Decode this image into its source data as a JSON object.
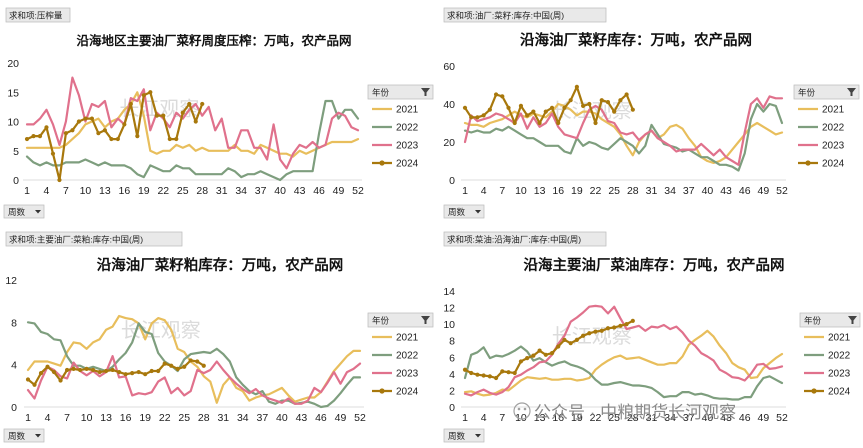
{
  "colors": {
    "y2021": "#E8BE5C",
    "y2022": "#7E9E7E",
    "y2023": "#E0718C",
    "y2024": "#A8780C"
  },
  "watermark": {
    "chars": "长江观察"
  },
  "credit": {
    "text": "公众号 · 中粮期货长河观察"
  },
  "chart_data": [
    {
      "type": "line",
      "header_tag": "求和项:压榨量",
      "title": "沿海地区主要油厂菜籽周度压榨：万吨，农产品网",
      "ylim": [
        0,
        20
      ],
      "yticks": [
        0,
        5,
        10,
        15,
        20
      ],
      "xticks": [
        1,
        4,
        7,
        10,
        13,
        16,
        19,
        22,
        25,
        28,
        31,
        34,
        37,
        40,
        43,
        46,
        49,
        52
      ],
      "legend_title": "年份",
      "filter_label": "周数",
      "series": [
        {
          "name": "2021",
          "values": [
            5.5,
            5.5,
            5.5,
            5.5,
            5.5,
            5.5,
            6,
            7,
            8,
            9.5,
            10,
            10.5,
            9,
            10,
            10.5,
            12,
            13,
            15,
            11,
            5,
            4.5,
            5,
            5,
            6,
            5.5,
            6,
            5,
            5.5,
            5,
            5,
            5,
            5,
            6,
            5,
            5,
            4.5,
            6,
            5.5,
            5,
            4.5,
            4.5,
            4,
            5,
            4.5,
            5,
            5.5,
            6,
            6.5,
            6.5,
            6.5,
            6.5,
            7
          ]
        },
        {
          "name": "2022",
          "values": [
            4,
            3,
            2.5,
            3,
            2.5,
            2.5,
            3,
            3,
            3,
            3.5,
            3,
            2.5,
            3,
            2.5,
            2.5,
            2.5,
            2,
            1,
            0.5,
            2.5,
            2,
            1.5,
            1.5,
            2.5,
            2,
            2,
            1,
            1,
            1,
            1,
            1,
            2,
            1.5,
            0.5,
            1,
            1,
            1.5,
            1,
            0.5,
            0,
            1,
            1.5,
            1.5,
            1.5,
            1.5,
            8,
            13.5,
            13.5,
            10.5,
            12,
            12,
            10.5
          ]
        },
        {
          "name": "2023",
          "values": [
            9.5,
            9.5,
            10.5,
            12,
            9.5,
            6,
            10,
            17.5,
            14.5,
            10,
            13,
            12.5,
            13.5,
            9,
            10.5,
            9.5,
            14,
            13.5,
            15.5,
            8.5,
            11.5,
            10.5,
            9,
            11.5,
            10.5,
            12,
            13,
            11,
            12.5,
            8.5,
            10.5,
            5.5,
            5.5,
            8.5,
            8.5,
            5.5,
            5.5,
            3.5,
            9.5,
            3.5,
            2,
            4.5,
            6,
            5.5,
            6.5,
            5.5,
            6,
            10.5,
            11.5,
            11,
            9,
            8.5
          ]
        },
        {
          "name": "2024",
          "values": [
            7,
            7.5,
            7.5,
            9,
            4.5,
            0,
            8,
            8.5,
            10,
            10.5,
            10.5,
            8,
            8.5,
            7,
            7,
            9.5,
            13,
            7.5,
            14.5,
            15,
            11,
            11,
            7,
            7,
            11.5,
            13,
            10,
            13
          ]
        }
      ]
    },
    {
      "type": "line",
      "header_tag": "求和项:油厂:菜籽:库存:中国(周)",
      "title": "沿海油厂菜籽库存：万吨，农产品网",
      "ylim": [
        0,
        60
      ],
      "yticks": [
        0,
        20,
        40,
        60
      ],
      "xticks": [
        1,
        4,
        7,
        10,
        13,
        16,
        19,
        22,
        25,
        28,
        31,
        34,
        37,
        40,
        43,
        46,
        49,
        52
      ],
      "legend_title": "年份",
      "filter_label": "周数",
      "series": [
        {
          "name": "2021",
          "values": [
            30,
            29,
            29,
            28,
            30,
            31,
            32,
            34,
            36,
            34,
            33,
            35,
            34,
            33,
            36,
            40,
            39,
            37,
            34,
            36,
            36,
            35,
            32,
            30,
            28,
            24,
            18,
            13,
            20,
            24,
            26,
            22,
            24,
            28,
            29,
            27,
            22,
            18,
            12,
            10,
            9,
            10,
            12,
            16,
            20,
            24,
            28,
            30,
            28,
            26,
            24,
            25
          ]
        },
        {
          "name": "2022",
          "values": [
            26,
            25,
            26,
            25,
            25,
            27,
            26,
            28,
            26,
            24,
            22,
            22,
            20,
            18,
            18,
            18,
            15,
            14,
            22,
            18,
            20,
            19,
            17,
            16,
            19,
            22,
            20,
            18,
            14,
            18,
            29,
            24,
            19,
            18,
            17,
            15,
            16,
            14,
            12,
            12,
            10,
            8,
            8,
            7,
            5,
            14,
            32,
            40,
            36,
            40,
            39,
            30
          ]
        },
        {
          "name": "2023",
          "values": [
            20,
            34,
            31,
            32,
            33,
            35,
            34,
            32,
            30,
            35,
            27,
            33,
            28,
            30,
            35,
            28,
            24,
            23,
            22,
            30,
            37,
            39,
            37,
            31,
            30,
            25,
            24,
            25,
            21,
            24,
            26,
            22,
            20,
            18,
            15,
            16,
            16,
            16,
            19,
            16,
            13,
            16,
            12,
            10,
            8,
            25,
            40,
            43,
            38,
            44,
            43,
            43
          ]
        },
        {
          "name": "2024",
          "values": [
            38,
            33,
            33,
            34,
            37,
            45,
            44,
            38,
            30,
            39,
            34,
            36,
            30,
            36,
            38,
            30,
            38,
            42,
            49,
            39,
            40,
            30,
            42,
            41,
            36,
            42,
            45,
            37
          ]
        }
      ]
    },
    {
      "type": "line",
      "header_tag": "求和项:主要油厂:菜粕:库存:中国(周)",
      "title": "沿海油厂菜籽粕库存：万吨，农产品网",
      "ylim": [
        0,
        12
      ],
      "yticks": [
        0,
        4,
        8,
        12
      ],
      "xticks": [
        1,
        4,
        7,
        10,
        13,
        16,
        19,
        22,
        25,
        28,
        31,
        34,
        37,
        40,
        43,
        46,
        49,
        52
      ],
      "legend_title": "年份",
      "filter_label": "周数",
      "series": [
        {
          "name": "2021",
          "values": [
            3.5,
            4.3,
            4.3,
            4.3,
            4.1,
            3.9,
            5.2,
            6.1,
            6,
            5.5,
            6.1,
            6.4,
            7.3,
            7.6,
            8.6,
            8.4,
            8.3,
            7.9,
            6.4,
            7.9,
            8.4,
            8.2,
            7.3,
            5.5,
            5.2,
            4.3,
            3.8,
            2.9,
            2.4,
            0.4,
            2.1,
            2.8,
            1.8,
            1.5,
            0.6,
            0.9,
            1.1,
            1.2,
            1.5,
            1.8,
            1.1,
            0.5,
            0.7,
            0.9,
            0.9,
            1.4,
            2.4,
            3.4,
            4.1,
            4.8,
            5.3,
            5.3
          ]
        },
        {
          "name": "2022",
          "values": [
            8,
            7.9,
            7.1,
            6.9,
            6.4,
            6.3,
            4.8,
            3.9,
            3.9,
            3.6,
            3.8,
            3.6,
            3.4,
            3.8,
            4.5,
            5.1,
            6.1,
            7.9,
            7.1,
            6.9,
            5.1,
            4.3,
            3.9,
            3.4,
            4.5,
            5,
            5.1,
            5.2,
            5.1,
            5.5,
            5,
            4.3,
            2.8,
            2.1,
            1.5,
            1.2,
            1.5,
            0.5,
            0.3,
            0.6,
            0.6,
            0.3,
            0.4,
            0.5,
            0.3,
            0,
            0.1,
            0.6,
            1.3,
            2.1,
            2.8,
            2.8
          ]
        },
        {
          "name": "2023",
          "values": [
            1.6,
            0.8,
            2.5,
            3.8,
            3.5,
            2.9,
            2.7,
            4.2,
            3.4,
            3,
            3.4,
            2.9,
            3.3,
            4.8,
            2.8,
            2.9,
            1.1,
            1.3,
            1.2,
            1.4,
            2.4,
            2.8,
            1.3,
            1.8,
            1.1,
            1.5,
            3.5,
            3.2,
            3.5,
            4.3,
            3.5,
            2.8,
            2.2,
            1.7,
            1.3,
            1.7,
            1.1,
            0.8,
            0.6,
            0.4,
            0.8,
            0.3,
            0.3,
            0.6,
            1.8,
            1.4,
            2.3,
            3.3,
            2.2,
            3.3,
            3.6,
            4.1
          ]
        },
        {
          "name": "2024",
          "values": [
            2.6,
            2.1,
            3.2,
            3.8,
            3.3,
            2.5,
            3.5,
            3.6,
            3.5,
            3.6,
            3.5,
            3.3,
            3.4,
            3.5,
            3.3,
            3.1,
            3.2,
            3.3,
            3.1,
            3.4,
            3.4,
            4.1,
            3.9,
            3.6,
            3.8,
            4.4,
            4.3,
            3.9
          ]
        }
      ]
    },
    {
      "type": "line",
      "header_tag": "求和项:菜油:沿海油厂:库存:中国(周)",
      "title": "沿海主要油厂菜油库存：万吨，农产品网",
      "ylim": [
        0,
        14
      ],
      "yticks": [
        0,
        2,
        4,
        6,
        8,
        10,
        12,
        14
      ],
      "xticks": [
        1,
        4,
        7,
        10,
        13,
        16,
        19,
        22,
        25,
        28,
        31,
        34,
        37,
        40,
        43,
        46,
        49,
        52
      ],
      "legend_title": "年份",
      "filter_label": "周数",
      "series": [
        {
          "name": "2021",
          "values": [
            1.8,
            1.9,
            1.6,
            1.4,
            1.5,
            1.7,
            2.1,
            2,
            2.6,
            3.2,
            3.6,
            3.5,
            3.4,
            3.5,
            3.3,
            3.3,
            3.4,
            3.4,
            3.2,
            3.3,
            3.5,
            4.5,
            5.1,
            5.6,
            6,
            6.2,
            5.8,
            5.9,
            6,
            5.7,
            5.4,
            5.1,
            5.1,
            5.3,
            5.3,
            6.1,
            7.5,
            8.1,
            8.6,
            9.2,
            8.5,
            7.4,
            6.5,
            5.3,
            4.8,
            4.5,
            3.5,
            3.6,
            4.7,
            5.3,
            5.9,
            6.4
          ]
        },
        {
          "name": "2022",
          "values": [
            3.5,
            6.3,
            6.6,
            7.2,
            5.9,
            6.2,
            6.1,
            6.4,
            6.8,
            7.3,
            6.7,
            5.6,
            5.9,
            5.4,
            5,
            5.3,
            5.5,
            5.1,
            4.9,
            4.6,
            4.1,
            3.3,
            2.7,
            2.7,
            2.9,
            3,
            2.8,
            2.6,
            2.6,
            2.5,
            2.3,
            1.8,
            1.2,
            1.3,
            1.3,
            1.8,
            1.8,
            1.5,
            1.6,
            1.4,
            1.1,
            1,
            1,
            0.9,
            0.9,
            1.2,
            1.2,
            2.5,
            3.5,
            3.7,
            3.3,
            2.9
          ]
        },
        {
          "name": "2023",
          "values": [
            1.6,
            1.4,
            1.8,
            2.1,
            1.7,
            1.5,
            1.8,
            2.4,
            3.6,
            3.9,
            4.4,
            4.8,
            5.4,
            5.5,
            6.3,
            7.6,
            8.6,
            10.3,
            10.8,
            11.4,
            12.1,
            12.2,
            12.1,
            11.3,
            12.1,
            10.7,
            9.4,
            9.6,
            9.8,
            9.2,
            9.7,
            9.6,
            9.9,
            9.4,
            9.7,
            9,
            8,
            7.4,
            6.5,
            6.1,
            5.6,
            4.5,
            4.1,
            3.6,
            3.5,
            3.2,
            4,
            5.1,
            5.2,
            4.6,
            4.7,
            4.9
          ]
        },
        {
          "name": "2024",
          "values": [
            4.5,
            4.1,
            3.9,
            3.8,
            3.7,
            3.5,
            4.3,
            4.2,
            4.1,
            5.5,
            5.9,
            6.2,
            6.8,
            6.3,
            6.5,
            7.3,
            8.1,
            7.7,
            8.1,
            8.6,
            8.9,
            9.1,
            9.2,
            9.5,
            9.6,
            9.8,
            10,
            10.4
          ]
        }
      ]
    }
  ]
}
